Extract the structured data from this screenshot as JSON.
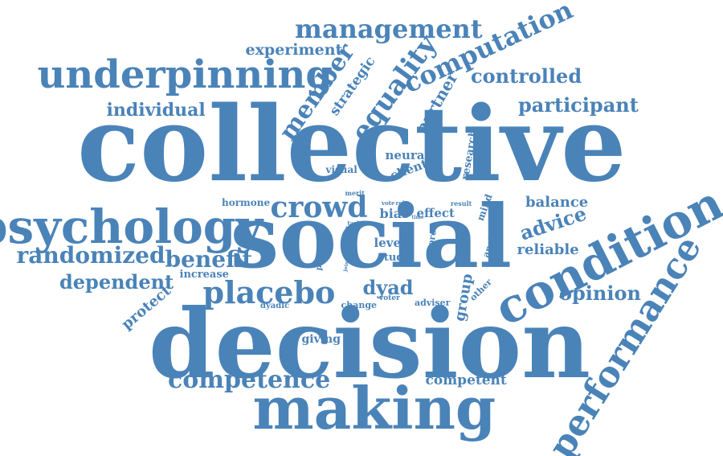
{
  "style": {
    "word_color": "#4a83b8",
    "background": "#ffffff"
  },
  "words": [
    {
      "id": "collective",
      "text": "collective"
    },
    {
      "id": "social",
      "text": "social"
    },
    {
      "id": "decision",
      "text": "decision"
    },
    {
      "id": "making",
      "text": "making"
    },
    {
      "id": "condition",
      "text": "condition"
    },
    {
      "id": "performance",
      "text": "performance"
    },
    {
      "id": "psychology",
      "text": "psychology"
    },
    {
      "id": "underpinning",
      "text": "underpinning"
    },
    {
      "id": "management",
      "text": "management"
    },
    {
      "id": "computation",
      "text": "computation"
    },
    {
      "id": "equality",
      "text": "equality"
    },
    {
      "id": "member",
      "text": "member"
    },
    {
      "id": "crowd",
      "text": "crowd"
    },
    {
      "id": "placebo",
      "text": "placebo"
    },
    {
      "id": "randomized",
      "text": "randomized"
    },
    {
      "id": "competence",
      "text": "competence"
    },
    {
      "id": "benefit",
      "text": "benefit"
    },
    {
      "id": "participant",
      "text": "participant"
    },
    {
      "id": "controlled",
      "text": "controlled"
    },
    {
      "id": "individual",
      "text": "individual"
    },
    {
      "id": "dependent",
      "text": "dependent"
    },
    {
      "id": "opinion",
      "text": "opinion"
    },
    {
      "id": "advice",
      "text": "advice"
    },
    {
      "id": "dyad",
      "text": "dyad"
    },
    {
      "id": "experiment",
      "text": "experiment"
    },
    {
      "id": "partner",
      "text": "partner"
    },
    {
      "id": "strategic",
      "text": "strategic"
    },
    {
      "id": "balance",
      "text": "balance"
    },
    {
      "id": "reliable",
      "text": "reliable"
    },
    {
      "id": "protect",
      "text": "protect"
    },
    {
      "id": "competent",
      "text": "competent"
    },
    {
      "id": "group",
      "text": "group"
    },
    {
      "id": "neural",
      "text": "neural"
    },
    {
      "id": "client",
      "text": "client"
    },
    {
      "id": "effect",
      "text": "effect"
    },
    {
      "id": "bias",
      "text": "bias"
    },
    {
      "id": "level",
      "text": "level"
    },
    {
      "id": "study",
      "text": "study"
    },
    {
      "id": "giving",
      "text": "giving"
    },
    {
      "id": "hormone",
      "text": "hormone"
    },
    {
      "id": "increase",
      "text": "increase"
    },
    {
      "id": "visual",
      "text": "visual"
    },
    {
      "id": "research",
      "text": "research"
    },
    {
      "id": "analysis",
      "text": "analysis"
    },
    {
      "id": "mind",
      "text": "mind"
    },
    {
      "id": "change",
      "text": "change"
    },
    {
      "id": "adviser",
      "text": "adviser"
    },
    {
      "id": "dyadic",
      "text": "dyadic"
    },
    {
      "id": "private",
      "text": "private"
    },
    {
      "id": "more",
      "text": "more"
    },
    {
      "id": "other",
      "text": "other"
    },
    {
      "id": "result",
      "text": "result"
    },
    {
      "id": "merit",
      "text": "merit"
    },
    {
      "id": "vote",
      "text": "vote"
    },
    {
      "id": "role",
      "text": "role"
    },
    {
      "id": "task",
      "text": "task"
    },
    {
      "id": "trial",
      "text": "trial"
    },
    {
      "id": "time",
      "text": "time"
    },
    {
      "id": "voter",
      "text": "voter"
    },
    {
      "id": "joint",
      "text": "joint"
    }
  ]
}
